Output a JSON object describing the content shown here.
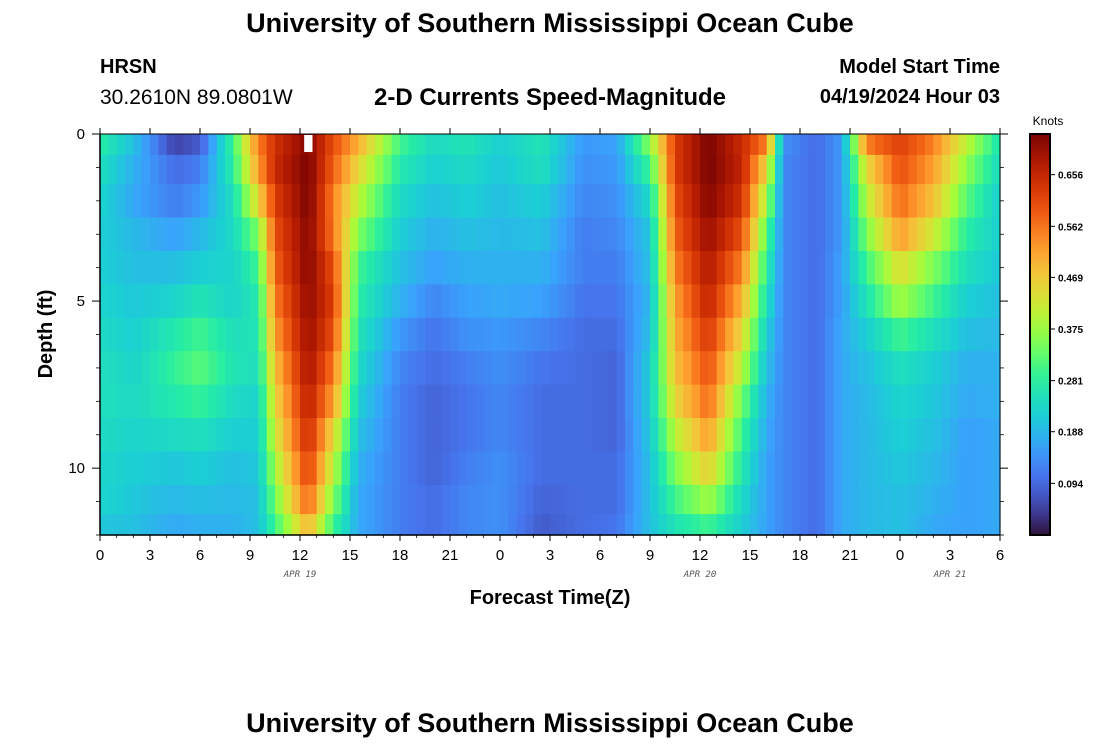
{
  "header": {
    "title": "University of Southern Mississippi Ocean Cube",
    "station_name": "HRSN",
    "station_coords": "30.2610N  89.0801W",
    "subtitle": "2-D Currents Speed-Magnitude",
    "model_start_label": "Model Start Time",
    "model_start_value": "04/19/2024 Hour 03"
  },
  "footer": {
    "title": "University of Southern Mississippi Ocean Cube"
  },
  "chart_data": {
    "type": "heatmap",
    "title": "2-D Currents Speed-Magnitude",
    "xlabel": "Forecast Time(Z)",
    "ylabel": "Depth (ft)",
    "x_unit": "forecast hour from APR 19 00Z",
    "xlim": [
      0,
      54
    ],
    "x_ticks": [
      0,
      3,
      6,
      9,
      12,
      15,
      18,
      21,
      24,
      27,
      30,
      33,
      36,
      39,
      42,
      45,
      48,
      51,
      54
    ],
    "x_tick_labels": [
      "0",
      "3",
      "6",
      "9",
      "12",
      "15",
      "18",
      "21",
      "0",
      "3",
      "6",
      "9",
      "12",
      "15",
      "18",
      "21",
      "0",
      "3",
      "6"
    ],
    "date_labels": [
      {
        "label": "APR 19",
        "hour": 12
      },
      {
        "label": "APR 20",
        "hour": 36
      },
      {
        "label": "APR 21",
        "hour": 51
      }
    ],
    "ylim": [
      0,
      12
    ],
    "y_inverted": true,
    "y_ticks": [
      0,
      5,
      10
    ],
    "y_tick_labels": [
      "0",
      "5",
      "10"
    ],
    "colorbar": {
      "unit": "Knots",
      "ticks": [
        0.094,
        0.188,
        0.281,
        0.375,
        0.469,
        0.562,
        0.656
      ],
      "tick_labels": [
        "0.094",
        "0.188",
        "0.281",
        "0.375",
        "0.469",
        "0.562",
        "0.656"
      ],
      "range": [
        0,
        0.73
      ],
      "colormap": "turbo"
    },
    "depth_levels": [
      0.25,
      1.0,
      2.0,
      3.0,
      4.0,
      5.0,
      6.0,
      7.0,
      8.0,
      9.0,
      10.0,
      11.0,
      11.75
    ],
    "time_control_points": [
      {
        "hour": 0,
        "speeds": [
          0.28,
          0.25,
          0.23,
          0.22,
          0.22,
          0.23,
          0.24,
          0.25,
          0.25,
          0.24,
          0.23,
          0.23,
          0.21
        ]
      },
      {
        "hour": 2,
        "speeds": [
          0.2,
          0.18,
          0.17,
          0.19,
          0.2,
          0.21,
          0.22,
          0.23,
          0.24,
          0.23,
          0.22,
          0.21,
          0.2
        ]
      },
      {
        "hour": 4.5,
        "speeds": [
          0.05,
          0.1,
          0.12,
          0.16,
          0.2,
          0.23,
          0.27,
          0.29,
          0.27,
          0.24,
          0.21,
          0.19,
          0.17
        ]
      },
      {
        "hour": 6,
        "speeds": [
          0.08,
          0.12,
          0.15,
          0.19,
          0.22,
          0.26,
          0.3,
          0.32,
          0.29,
          0.25,
          0.22,
          0.2,
          0.18
        ]
      },
      {
        "hour": 8,
        "speeds": [
          0.3,
          0.28,
          0.25,
          0.24,
          0.23,
          0.23,
          0.25,
          0.26,
          0.24,
          0.22,
          0.2,
          0.19,
          0.18
        ]
      },
      {
        "hour": 9.5,
        "speeds": [
          0.55,
          0.52,
          0.45,
          0.35,
          0.3,
          0.27,
          0.26,
          0.25,
          0.23,
          0.22,
          0.21,
          0.2,
          0.2
        ]
      },
      {
        "hour": 10.5,
        "speeds": [
          0.64,
          0.65,
          0.62,
          0.6,
          0.58,
          0.55,
          0.52,
          0.48,
          0.45,
          0.42,
          0.38,
          0.34,
          0.3
        ]
      },
      {
        "hour": 12.5,
        "speeds": [
          0.72,
          0.73,
          0.73,
          0.72,
          0.72,
          0.71,
          0.7,
          0.69,
          0.67,
          0.65,
          0.62,
          0.58,
          0.5
        ]
      },
      {
        "hour": 14,
        "speeds": [
          0.6,
          0.58,
          0.55,
          0.56,
          0.6,
          0.62,
          0.6,
          0.56,
          0.52,
          0.45,
          0.4,
          0.35,
          0.3
        ]
      },
      {
        "hour": 15.5,
        "speeds": [
          0.5,
          0.45,
          0.4,
          0.35,
          0.3,
          0.28,
          0.26,
          0.24,
          0.22,
          0.2,
          0.18,
          0.17,
          0.17
        ]
      },
      {
        "hour": 18,
        "speeds": [
          0.3,
          0.27,
          0.24,
          0.22,
          0.2,
          0.18,
          0.15,
          0.13,
          0.12,
          0.12,
          0.12,
          0.12,
          0.12
        ]
      },
      {
        "hour": 20,
        "speeds": [
          0.24,
          0.22,
          0.2,
          0.18,
          0.16,
          0.13,
          0.11,
          0.1,
          0.09,
          0.09,
          0.09,
          0.1,
          0.1
        ]
      },
      {
        "hour": 22,
        "speeds": [
          0.26,
          0.24,
          0.22,
          0.2,
          0.18,
          0.16,
          0.14,
          0.12,
          0.11,
          0.11,
          0.12,
          0.13,
          0.13
        ]
      },
      {
        "hour": 24,
        "speeds": [
          0.22,
          0.21,
          0.2,
          0.19,
          0.18,
          0.17,
          0.15,
          0.14,
          0.13,
          0.13,
          0.14,
          0.14,
          0.14
        ]
      },
      {
        "hour": 26.5,
        "speeds": [
          0.26,
          0.25,
          0.22,
          0.2,
          0.18,
          0.16,
          0.13,
          0.11,
          0.1,
          0.1,
          0.1,
          0.09,
          0.08
        ]
      },
      {
        "hour": 29,
        "speeds": [
          0.15,
          0.14,
          0.13,
          0.12,
          0.12,
          0.11,
          0.1,
          0.1,
          0.1,
          0.1,
          0.1,
          0.1,
          0.1
        ]
      },
      {
        "hour": 31,
        "speeds": [
          0.16,
          0.15,
          0.14,
          0.13,
          0.12,
          0.11,
          0.1,
          0.09,
          0.09,
          0.09,
          0.1,
          0.1,
          0.11
        ]
      },
      {
        "hour": 33,
        "speeds": [
          0.36,
          0.3,
          0.24,
          0.21,
          0.2,
          0.19,
          0.2,
          0.22,
          0.22,
          0.21,
          0.2,
          0.2,
          0.2
        ]
      },
      {
        "hour": 34.5,
        "speeds": [
          0.62,
          0.62,
          0.6,
          0.58,
          0.55,
          0.52,
          0.5,
          0.48,
          0.45,
          0.4,
          0.35,
          0.3,
          0.26
        ]
      },
      {
        "hour": 36.5,
        "speeds": [
          0.73,
          0.73,
          0.72,
          0.7,
          0.68,
          0.66,
          0.63,
          0.6,
          0.57,
          0.52,
          0.46,
          0.38,
          0.3
        ]
      },
      {
        "hour": 38.5,
        "speeds": [
          0.65,
          0.66,
          0.64,
          0.6,
          0.55,
          0.5,
          0.45,
          0.4,
          0.34,
          0.3,
          0.27,
          0.24,
          0.22
        ]
      },
      {
        "hour": 40,
        "speeds": [
          0.55,
          0.45,
          0.38,
          0.32,
          0.28,
          0.25,
          0.22,
          0.2,
          0.18,
          0.17,
          0.16,
          0.16,
          0.16
        ]
      },
      {
        "hour": 41,
        "speeds": [
          0.14,
          0.13,
          0.13,
          0.13,
          0.13,
          0.13,
          0.13,
          0.13,
          0.13,
          0.13,
          0.13,
          0.13,
          0.13
        ]
      },
      {
        "hour": 43,
        "speeds": [
          0.1,
          0.1,
          0.1,
          0.1,
          0.1,
          0.1,
          0.1,
          0.1,
          0.1,
          0.1,
          0.1,
          0.1,
          0.1
        ]
      },
      {
        "hour": 44.5,
        "speeds": [
          0.15,
          0.15,
          0.15,
          0.15,
          0.16,
          0.16,
          0.17,
          0.17,
          0.17,
          0.17,
          0.17,
          0.17,
          0.17
        ]
      },
      {
        "hour": 46,
        "speeds": [
          0.55,
          0.45,
          0.4,
          0.35,
          0.3,
          0.26,
          0.22,
          0.2,
          0.19,
          0.19,
          0.19,
          0.19,
          0.19
        ]
      },
      {
        "hour": 48,
        "speeds": [
          0.62,
          0.6,
          0.57,
          0.52,
          0.44,
          0.38,
          0.3,
          0.25,
          0.23,
          0.22,
          0.21,
          0.2,
          0.2
        ]
      },
      {
        "hour": 50,
        "speeds": [
          0.55,
          0.52,
          0.48,
          0.42,
          0.35,
          0.3,
          0.25,
          0.22,
          0.21,
          0.2,
          0.19,
          0.18,
          0.17
        ]
      },
      {
        "hour": 52,
        "speeds": [
          0.4,
          0.36,
          0.32,
          0.28,
          0.25,
          0.22,
          0.2,
          0.18,
          0.17,
          0.16,
          0.16,
          0.16,
          0.16
        ]
      },
      {
        "hour": 54,
        "speeds": [
          0.26,
          0.24,
          0.22,
          0.22,
          0.21,
          0.2,
          0.19,
          0.18,
          0.18,
          0.17,
          0.17,
          0.17,
          0.17
        ]
      }
    ],
    "missing_cells": [
      {
        "hour": 12.5,
        "depth": 0.25
      }
    ]
  }
}
